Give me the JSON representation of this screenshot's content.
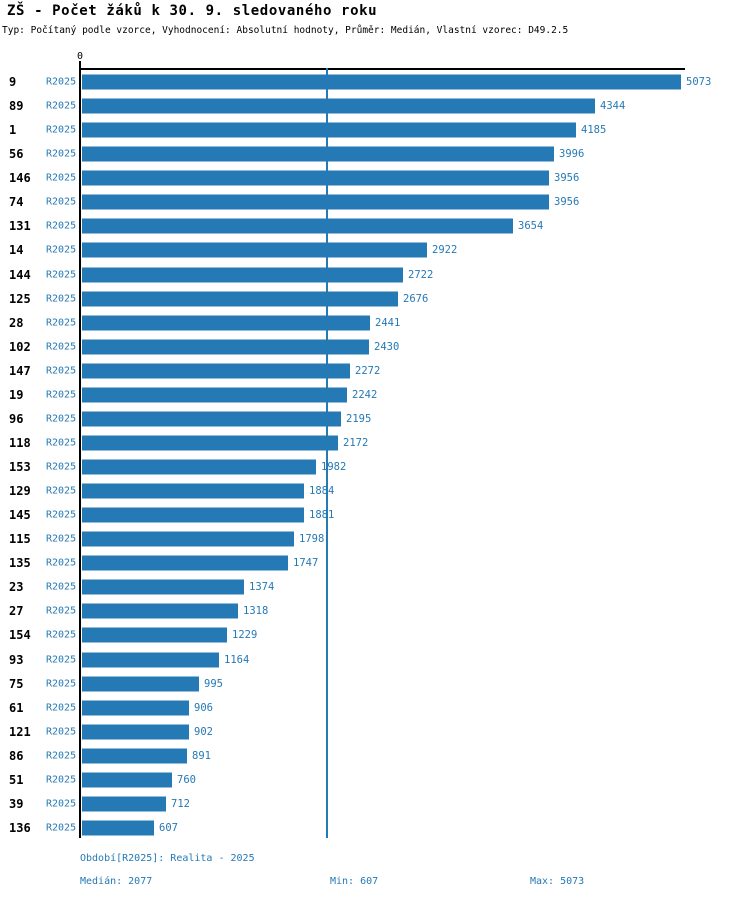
{
  "header": {
    "title": "ZŠ - Počet žáků k 30. 9. sledovaného roku",
    "subtitle": "Typ: Počítaný podle vzorce, Vyhodnocení: Absolutní hodnoty, Průměr: Medián, Vlastní vzorec: D49.2.5"
  },
  "axis": {
    "zero_label": "0"
  },
  "chart_data": {
    "type": "bar",
    "orientation": "horizontal",
    "title": "ZŠ - Počet žáků k 30. 9. sledovaného roku",
    "series_label": "R2025",
    "categories": [
      "9",
      "89",
      "1",
      "56",
      "146",
      "74",
      "131",
      "14",
      "144",
      "125",
      "28",
      "102",
      "147",
      "19",
      "96",
      "118",
      "153",
      "129",
      "145",
      "115",
      "135",
      "23",
      "27",
      "154",
      "93",
      "75",
      "61",
      "121",
      "86",
      "51",
      "39",
      "136"
    ],
    "values": [
      5073,
      4344,
      4185,
      3996,
      3956,
      3956,
      3654,
      2922,
      2722,
      2676,
      2441,
      2430,
      2272,
      2242,
      2195,
      2172,
      1982,
      1884,
      1881,
      1798,
      1747,
      1374,
      1318,
      1229,
      1164,
      995,
      906,
      902,
      891,
      760,
      712,
      607
    ],
    "xlabel": "",
    "ylabel": "",
    "xlim": [
      0,
      5073
    ],
    "median": 2077,
    "min": 607,
    "max": 5073,
    "grid": false,
    "median_line_shown": true,
    "bar_color": "#2579b5",
    "axis_color": "#000000"
  },
  "footer": {
    "period": "Období[R2025]: Realita - 2025",
    "median": "Medián: 2077",
    "min": "Min: 607",
    "max": "Max: 5073"
  }
}
